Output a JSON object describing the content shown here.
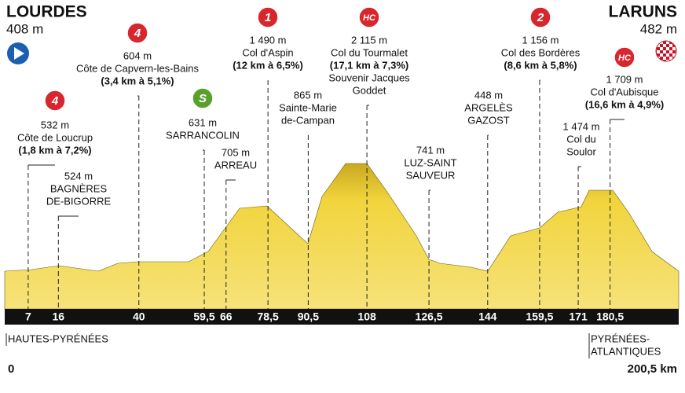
{
  "chart_data": {
    "type": "elevation-profile",
    "start": {
      "name": "LOURDES",
      "altitude": "408 m"
    },
    "finish": {
      "name": "LARUNS",
      "altitude": "482 m"
    },
    "xlim": [
      0,
      200.5
    ],
    "start_label": "0",
    "end_label": "200,5 km",
    "xticks": [
      {
        "value": 7,
        "label": "7"
      },
      {
        "value": 16,
        "label": "16"
      },
      {
        "value": 40,
        "label": "40"
      },
      {
        "value": 59.5,
        "label": "59,5"
      },
      {
        "value": 66,
        "label": "66"
      },
      {
        "value": 78.5,
        "label": "78,5"
      },
      {
        "value": 90.5,
        "label": "90,5"
      },
      {
        "value": 108,
        "label": "108"
      },
      {
        "value": 126.5,
        "label": "126,5"
      },
      {
        "value": 144,
        "label": "144"
      },
      {
        "value": 159.5,
        "label": "159,5"
      },
      {
        "value": 171,
        "label": "171"
      },
      {
        "value": 180.5,
        "label": "180,5"
      }
    ],
    "profile_color": "#f1d43c",
    "annotations": [
      {
        "x": 7,
        "badge": "4",
        "badge_color": "#d7262d",
        "lines": [
          "532 m",
          "Côte de Loucrup",
          "(1,8 km à 7,2%)"
        ]
      },
      {
        "x": 16,
        "lines": [
          "524 m",
          "BAGNÈRES",
          "DE-BIGORRE"
        ]
      },
      {
        "x": 40,
        "badge": "4",
        "badge_color": "#d7262d",
        "lines": [
          "604 m",
          "Côte de Capvern-les-Bains",
          "(3,4 km à 5,1%)"
        ]
      },
      {
        "x": 59.5,
        "badge": "S",
        "badge_color": "#5aa02c",
        "lines": [
          "631 m",
          "SARRANCOLIN"
        ]
      },
      {
        "x": 66,
        "lines": [
          "705 m",
          "ARREAU"
        ]
      },
      {
        "x": 78.5,
        "badge": "1",
        "badge_color": "#d7262d",
        "lines": [
          "1 490 m",
          "Col d'Aspin",
          "(12 km à 6,5%)"
        ]
      },
      {
        "x": 90.5,
        "lines": [
          "865 m",
          "Sainte-Marie",
          "de-Campan"
        ]
      },
      {
        "x": 108,
        "badge": "HC",
        "badge_color": "#d7262d",
        "lines": [
          "2 115 m",
          "Col du Tourmalet",
          "(17,1 km à 7,3%)",
          "Souvenir Jacques",
          "Goddet"
        ]
      },
      {
        "x": 126.5,
        "lines": [
          "741 m",
          "LUZ-SAINT",
          "SAUVEUR"
        ]
      },
      {
        "x": 144,
        "lines": [
          "448 m",
          "ARGELÈS",
          "GAZOST"
        ]
      },
      {
        "x": 159.5,
        "badge": "2",
        "badge_color": "#d7262d",
        "lines": [
          "1 156 m",
          "Col des Bordères",
          "(8,6 km à 5,8%)"
        ]
      },
      {
        "x": 171,
        "lines": [
          "1 474 m",
          "Col du",
          "Soulor"
        ]
      },
      {
        "x": 180.5,
        "badge": "HC",
        "badge_color": "#d7262d",
        "lines": [
          "1 709 m",
          "Col d'Aubisque",
          "(16,6 km à 4,9%)"
        ]
      }
    ],
    "regions": [
      {
        "lines": [
          "HAUTES-PYRÉNÉES"
        ]
      },
      {
        "lines": [
          "PYRÉNÉES-",
          "ATLANTIQUES"
        ]
      }
    ]
  }
}
